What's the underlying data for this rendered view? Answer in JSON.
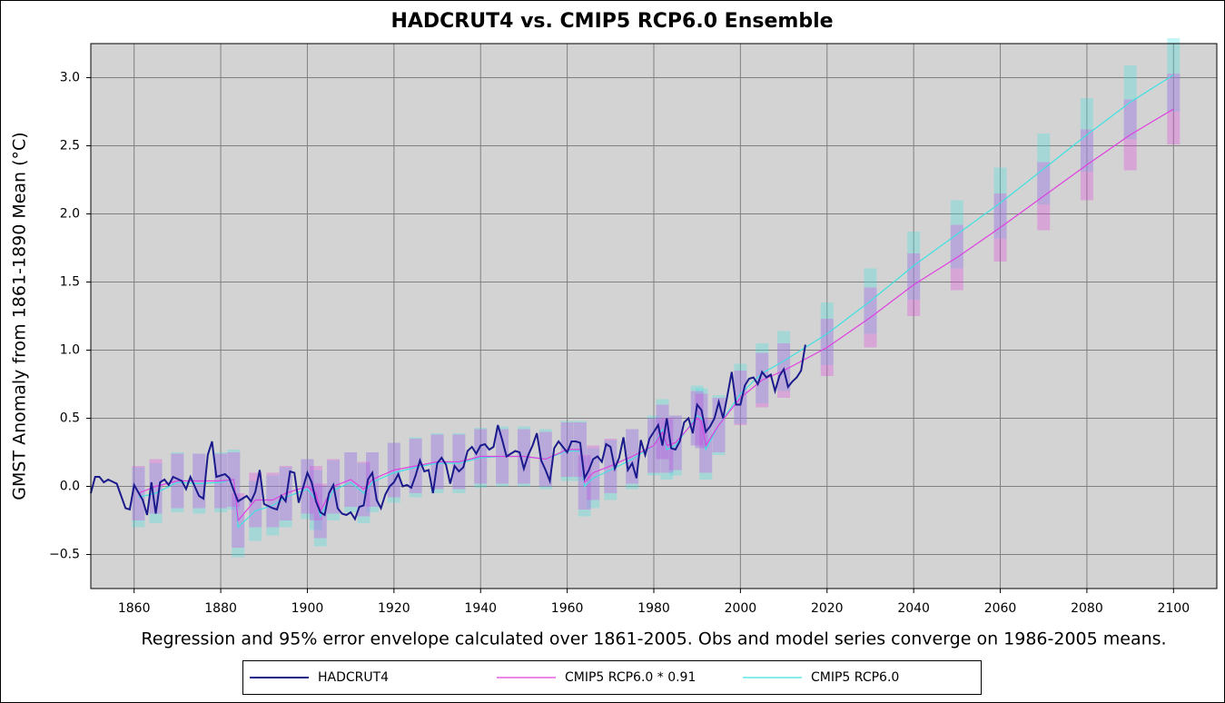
{
  "chart_data": {
    "type": "line",
    "title": "HADCRUT4 vs. CMIP5 RCP6.0 Ensemble",
    "ylabel": "GMST Anomaly from 1861-1890 Mean (°C)",
    "note": "Regression and 95% error envelope calculated over 1861-2005.  Obs and model series converge on 1986-2005 means.",
    "xlim": [
      1850,
      2110
    ],
    "ylim": [
      -0.75,
      3.25
    ],
    "xticks": [
      1860,
      1880,
      1900,
      1920,
      1940,
      1960,
      1980,
      2000,
      2020,
      2040,
      2060,
      2080,
      2100
    ],
    "yticks": [
      {
        "value": -0.5,
        "label": "−0.5"
      },
      {
        "value": 0,
        "label": "0.0"
      },
      0.5,
      {
        "value": 1,
        "label": "1.0"
      },
      1.5,
      {
        "value": 2,
        "label": "2.0"
      },
      2.5,
      {
        "value": 3,
        "label": "3.0"
      }
    ],
    "grid": true,
    "series": [
      {
        "name": "CMIP5 RCP6.0",
        "color": "#40e0e0",
        "x": [
          1861,
          1865,
          1870,
          1875,
          1880,
          1883,
          1884,
          1888,
          1892,
          1895,
          1900,
          1902,
          1903,
          1906,
          1910,
          1913,
          1915,
          1920,
          1925,
          1930,
          1935,
          1940,
          1945,
          1950,
          1955,
          1960,
          1963,
          1964,
          1966,
          1970,
          1975,
          1980,
          1982,
          1983,
          1985,
          1990,
          1991,
          1992,
          1995,
          2000,
          2005,
          2010,
          2020,
          2030,
          2040,
          2050,
          2060,
          2070,
          2080,
          2090,
          2100
        ],
        "values": [
          -0.08,
          -0.05,
          0.03,
          0.02,
          0.03,
          0.05,
          -0.3,
          -0.18,
          -0.14,
          -0.08,
          -0.02,
          -0.1,
          -0.22,
          -0.03,
          0.03,
          -0.05,
          0.03,
          0.1,
          0.14,
          0.17,
          0.17,
          0.21,
          0.22,
          0.22,
          0.2,
          0.26,
          0.26,
          0,
          0.06,
          0.12,
          0.2,
          0.3,
          0.42,
          0.27,
          0.3,
          0.52,
          0.5,
          0.27,
          0.45,
          0.68,
          0.83,
          0.92,
          1.12,
          1.36,
          1.62,
          1.85,
          2.08,
          2.33,
          2.58,
          2.82,
          3.02
        ],
        "error": [
          0.22,
          0.22,
          0.22,
          0.22,
          0.22,
          0.22,
          0.22,
          0.22,
          0.22,
          0.22,
          0.22,
          0.22,
          0.22,
          0.22,
          0.22,
          0.22,
          0.22,
          0.22,
          0.22,
          0.22,
          0.22,
          0.22,
          0.22,
          0.22,
          0.22,
          0.22,
          0.22,
          0.22,
          0.22,
          0.22,
          0.22,
          0.22,
          0.22,
          0.22,
          0.22,
          0.22,
          0.22,
          0.22,
          0.22,
          0.22,
          0.22,
          0.22,
          0.23,
          0.24,
          0.25,
          0.25,
          0.26,
          0.26,
          0.27,
          0.27,
          0.27
        ]
      },
      {
        "name": "CMIP5 RCP6.0 * 0.91",
        "color": "#e040e0",
        "x": [
          1861,
          1865,
          1870,
          1875,
          1880,
          1883,
          1884,
          1888,
          1892,
          1895,
          1900,
          1902,
          1903,
          1906,
          1910,
          1913,
          1915,
          1920,
          1925,
          1930,
          1935,
          1940,
          1945,
          1950,
          1955,
          1960,
          1963,
          1964,
          1966,
          1970,
          1975,
          1980,
          1982,
          1983,
          1985,
          1990,
          1991,
          1992,
          1995,
          2000,
          2005,
          2010,
          2020,
          2030,
          2040,
          2050,
          2060,
          2070,
          2080,
          2090,
          2100
        ],
        "values": [
          -0.05,
          0,
          0.04,
          0.04,
          0.04,
          0.05,
          -0.25,
          -0.1,
          -0.1,
          -0.05,
          0,
          -0.05,
          -0.18,
          0,
          0.05,
          -0.02,
          0.05,
          0.12,
          0.15,
          0.18,
          0.18,
          0.22,
          0.22,
          0.22,
          0.2,
          0.27,
          0.27,
          0.03,
          0.1,
          0.15,
          0.22,
          0.3,
          0.4,
          0.3,
          0.32,
          0.5,
          0.48,
          0.3,
          0.45,
          0.65,
          0.78,
          0.85,
          1.02,
          1.24,
          1.48,
          1.68,
          1.9,
          2.13,
          2.36,
          2.58,
          2.77
        ],
        "error": [
          0.2,
          0.2,
          0.2,
          0.2,
          0.2,
          0.2,
          0.2,
          0.2,
          0.2,
          0.2,
          0.2,
          0.2,
          0.2,
          0.2,
          0.2,
          0.2,
          0.2,
          0.2,
          0.2,
          0.2,
          0.2,
          0.2,
          0.2,
          0.2,
          0.2,
          0.2,
          0.2,
          0.2,
          0.2,
          0.2,
          0.2,
          0.2,
          0.2,
          0.2,
          0.2,
          0.2,
          0.2,
          0.2,
          0.2,
          0.2,
          0.2,
          0.2,
          0.21,
          0.22,
          0.23,
          0.24,
          0.25,
          0.25,
          0.26,
          0.26,
          0.26
        ]
      },
      {
        "name": "HADCRUT4",
        "color": "#1a1a8c",
        "x": [
          1850,
          1851,
          1852,
          1853,
          1854,
          1856,
          1858,
          1859,
          1860,
          1862,
          1863,
          1864,
          1865,
          1866,
          1867,
          1868,
          1869,
          1871,
          1872,
          1873,
          1875,
          1876,
          1877,
          1878,
          1879,
          1881,
          1882,
          1883,
          1884,
          1886,
          1887,
          1888,
          1889,
          1890,
          1892,
          1893,
          1894,
          1895,
          1896,
          1897,
          1898,
          1900,
          1901,
          1902,
          1903,
          1904,
          1905,
          1906,
          1907,
          1908,
          1909,
          1910,
          1911,
          1912,
          1913,
          1914,
          1915,
          1916,
          1917,
          1918,
          1919,
          1920,
          1921,
          1922,
          1923,
          1924,
          1925,
          1926,
          1927,
          1928,
          1929,
          1930,
          1931,
          1932,
          1933,
          1934,
          1935,
          1936,
          1937,
          1938,
          1939,
          1940,
          1941,
          1942,
          1943,
          1944,
          1945,
          1946,
          1947,
          1948,
          1949,
          1950,
          1951,
          1952,
          1953,
          1954,
          1955,
          1956,
          1957,
          1958,
          1959,
          1960,
          1961,
          1962,
          1963,
          1964,
          1965,
          1966,
          1967,
          1968,
          1969,
          1970,
          1971,
          1972,
          1973,
          1974,
          1975,
          1976,
          1977,
          1978,
          1979,
          1980,
          1981,
          1982,
          1983,
          1984,
          1985,
          1986,
          1987,
          1988,
          1989,
          1990,
          1991,
          1992,
          1993,
          1994,
          1995,
          1996,
          1997,
          1998,
          1999,
          2000,
          2001,
          2002,
          2003,
          2004,
          2005,
          2006,
          2007,
          2008,
          2009,
          2010,
          2011,
          2012,
          2013,
          2014,
          2015
        ],
        "values": [
          -0.05,
          0.07,
          0.07,
          0.03,
          0.05,
          0.02,
          -0.16,
          -0.17,
          0.01,
          -0.1,
          -0.21,
          0.03,
          -0.2,
          0.03,
          0.05,
          0.01,
          0.07,
          0.04,
          -0.02,
          0.07,
          -0.07,
          -0.09,
          0.23,
          0.33,
          0.07,
          0.09,
          0.06,
          -0.03,
          -0.11,
          -0.07,
          -0.11,
          -0.04,
          0.12,
          -0.13,
          -0.16,
          -0.17,
          -0.07,
          -0.11,
          0.11,
          0.1,
          -0.12,
          0.1,
          0.03,
          -0.11,
          -0.19,
          -0.21,
          -0.05,
          0.01,
          -0.16,
          -0.2,
          -0.21,
          -0.19,
          -0.24,
          -0.15,
          -0.14,
          0.05,
          0.1,
          -0.1,
          -0.16,
          -0.06,
          0,
          0.03,
          0.09,
          0,
          0.01,
          -0.01,
          0.08,
          0.19,
          0.11,
          0.12,
          -0.05,
          0.17,
          0.21,
          0.16,
          0.02,
          0.15,
          0.11,
          0.14,
          0.26,
          0.29,
          0.24,
          0.3,
          0.31,
          0.27,
          0.29,
          0.45,
          0.34,
          0.22,
          0.24,
          0.26,
          0.25,
          0.13,
          0.23,
          0.3,
          0.39,
          0.19,
          0.12,
          0.04,
          0.28,
          0.33,
          0.29,
          0.25,
          0.33,
          0.33,
          0.32,
          0.06,
          0.12,
          0.2,
          0.22,
          0.18,
          0.31,
          0.29,
          0.13,
          0.21,
          0.36,
          0.12,
          0.17,
          0.06,
          0.34,
          0.23,
          0.35,
          0.4,
          0.45,
          0.3,
          0.5,
          0.28,
          0.27,
          0.33,
          0.47,
          0.5,
          0.39,
          0.6,
          0.56,
          0.4,
          0.44,
          0.5,
          0.62,
          0.5,
          0.67,
          0.84,
          0.6,
          0.6,
          0.74,
          0.79,
          0.8,
          0.75,
          0.84,
          0.8,
          0.82,
          0.7,
          0.81,
          0.86,
          0.73,
          0.77,
          0.8,
          0.85,
          1.04
        ]
      }
    ],
    "legend_order": [
      "HADCRUT4",
      "CMIP5 RCP6.0 * 0.91",
      "CMIP5 RCP6.0"
    ]
  }
}
